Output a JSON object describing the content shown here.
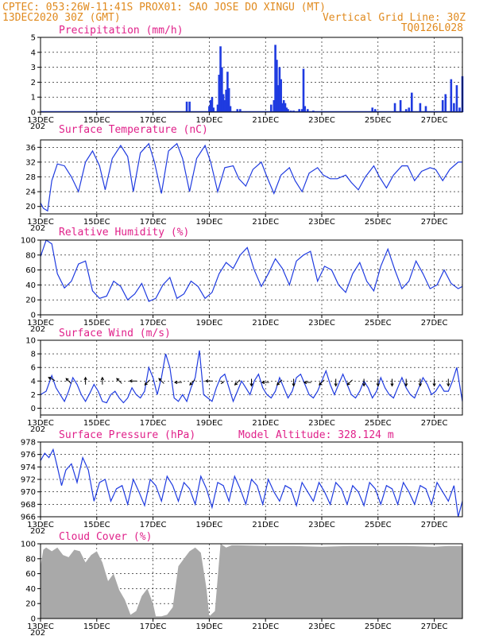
{
  "header": {
    "line1": "CPTEC:  053:26W-11:41S  PROX01: SAO JOSE DO XINGU (MT)",
    "line2_left": "13DEC2020 30Z (GMT)",
    "line2_right": "Vertical Grid Line: 30Z",
    "line3_right": "TQ0126L028"
  },
  "colors": {
    "header": "#e08a1e",
    "title": "#e0218a",
    "series": "#1f3be0",
    "cloud": "#a9a9a9"
  },
  "x_axis": {
    "start_day": 13,
    "end_day": 28,
    "tick_labels": [
      "13DEC",
      "15DEC",
      "17DEC",
      "19DEC",
      "21DEC",
      "23DEC",
      "25DEC",
      "27DEC"
    ],
    "tick_days": [
      13,
      15,
      17,
      19,
      21,
      23,
      25,
      27
    ],
    "cut_label": "202"
  },
  "chart_data": [
    {
      "id": "precip",
      "type": "bar",
      "title": "Precipitation (mm/h)",
      "ylim": [
        0,
        5
      ],
      "yticks": [
        0,
        1,
        2,
        3,
        4,
        5
      ],
      "x": [
        18.2,
        18.3,
        19.0,
        19.05,
        19.1,
        19.15,
        19.3,
        19.35,
        19.4,
        19.45,
        19.5,
        19.55,
        19.6,
        19.65,
        19.7,
        19.75,
        20.0,
        20.1,
        21.2,
        21.3,
        21.35,
        21.4,
        21.45,
        21.5,
        21.55,
        21.6,
        21.65,
        21.7,
        21.75,
        21.8,
        21.9,
        22.0,
        22.2,
        22.3,
        22.35,
        22.4,
        22.5,
        22.7,
        24.8,
        24.9,
        25.6,
        25.8,
        26.0,
        26.1,
        26.2,
        26.5,
        26.7,
        27.3,
        27.4,
        27.6,
        27.7,
        27.8,
        27.9,
        28.0
      ],
      "values": [
        0.7,
        0.7,
        0.4,
        0.8,
        1.0,
        0.3,
        0.5,
        2.5,
        4.4,
        3.0,
        1.2,
        0.8,
        1.5,
        2.7,
        1.6,
        0.4,
        0.2,
        0.2,
        0.5,
        0.8,
        4.5,
        3.5,
        1.8,
        3.0,
        2.2,
        0.6,
        0.8,
        0.6,
        0.3,
        0.2,
        0.1,
        0.1,
        0.2,
        0.2,
        2.9,
        0.4,
        0.2,
        0.1,
        0.3,
        0.2,
        0.6,
        0.8,
        0.2,
        0.3,
        1.3,
        0.6,
        0.4,
        0.8,
        1.2,
        2.2,
        0.6,
        1.8,
        0.3,
        2.4
      ]
    },
    {
      "id": "temp",
      "type": "line",
      "title": "Surface Temperature (nC)",
      "ylim": [
        18,
        38
      ],
      "yticks": [
        20,
        24,
        28,
        32,
        36
      ],
      "x": [
        13.0,
        13.1,
        13.25,
        13.4,
        13.6,
        13.85,
        14.1,
        14.35,
        14.6,
        14.85,
        15.1,
        15.3,
        15.55,
        15.85,
        16.1,
        16.3,
        16.55,
        16.85,
        17.05,
        17.3,
        17.55,
        17.85,
        18.05,
        18.3,
        18.55,
        18.85,
        19.05,
        19.3,
        19.55,
        19.85,
        20.05,
        20.3,
        20.55,
        20.85,
        21.05,
        21.3,
        21.55,
        21.85,
        22.05,
        22.3,
        22.55,
        22.85,
        23.05,
        23.3,
        23.55,
        23.85,
        24.05,
        24.3,
        24.55,
        24.85,
        25.05,
        25.3,
        25.55,
        25.85,
        26.05,
        26.3,
        26.55,
        26.85,
        27.05,
        27.3,
        27.55,
        27.85,
        28.0
      ],
      "values": [
        21.0,
        19.5,
        18.8,
        27.0,
        31.5,
        31.0,
        28.0,
        24.0,
        32.0,
        35.0,
        31.0,
        24.5,
        33.0,
        36.5,
        33.5,
        24.0,
        34.5,
        37.0,
        32.0,
        23.5,
        35.0,
        37.0,
        33.0,
        24.0,
        33.0,
        36.5,
        32.0,
        24.0,
        30.5,
        31.0,
        27.5,
        25.5,
        30.0,
        32.0,
        28.0,
        23.5,
        28.5,
        30.5,
        27.0,
        24.0,
        29.0,
        30.5,
        28.5,
        27.5,
        27.5,
        28.5,
        26.5,
        24.5,
        28.0,
        31.0,
        28.0,
        25.0,
        28.5,
        31.0,
        31.0,
        27.0,
        29.5,
        30.5,
        30.0,
        27.0,
        30.0,
        32.0,
        32.0
      ]
    },
    {
      "id": "rh",
      "type": "line",
      "title": "Relative Humidity (%)",
      "ylim": [
        0,
        100
      ],
      "yticks": [
        0,
        20,
        40,
        60,
        80,
        100
      ],
      "x": [
        13.0,
        13.2,
        13.4,
        13.6,
        13.85,
        14.1,
        14.35,
        14.6,
        14.85,
        15.1,
        15.35,
        15.6,
        15.85,
        16.1,
        16.35,
        16.6,
        16.85,
        17.1,
        17.35,
        17.6,
        17.85,
        18.1,
        18.35,
        18.6,
        18.85,
        19.1,
        19.35,
        19.6,
        19.85,
        20.1,
        20.35,
        20.6,
        20.85,
        21.1,
        21.35,
        21.6,
        21.85,
        22.1,
        22.35,
        22.6,
        22.85,
        23.1,
        23.35,
        23.6,
        23.85,
        24.1,
        24.35,
        24.6,
        24.85,
        25.1,
        25.35,
        25.6,
        25.85,
        26.1,
        26.35,
        26.6,
        26.85,
        27.1,
        27.35,
        27.6,
        27.85,
        28.0
      ],
      "values": [
        78,
        100,
        95,
        55,
        36,
        45,
        68,
        72,
        32,
        22,
        25,
        45,
        38,
        20,
        28,
        42,
        18,
        22,
        40,
        50,
        22,
        28,
        45,
        38,
        22,
        30,
        55,
        70,
        62,
        80,
        90,
        60,
        38,
        55,
        75,
        62,
        40,
        72,
        80,
        85,
        45,
        65,
        60,
        40,
        30,
        55,
        70,
        45,
        32,
        65,
        88,
        60,
        35,
        45,
        72,
        55,
        35,
        40,
        60,
        42,
        35,
        38
      ]
    },
    {
      "id": "wind",
      "type": "line",
      "title": "Surface Wind (m/s)",
      "ylim": [
        -1,
        10
      ],
      "yticks": [
        0,
        2,
        4,
        6,
        8,
        10
      ],
      "x": [
        13.0,
        13.2,
        13.4,
        13.55,
        13.7,
        13.85,
        14.0,
        14.15,
        14.3,
        14.45,
        14.6,
        14.75,
        14.9,
        15.05,
        15.2,
        15.35,
        15.5,
        15.65,
        15.8,
        15.95,
        16.1,
        16.25,
        16.4,
        16.55,
        16.7,
        16.85,
        17.0,
        17.15,
        17.3,
        17.45,
        17.6,
        17.75,
        17.9,
        18.05,
        18.2,
        18.35,
        18.5,
        18.65,
        18.8,
        18.95,
        19.1,
        19.25,
        19.4,
        19.55,
        19.7,
        19.85,
        20.0,
        20.15,
        20.3,
        20.45,
        20.6,
        20.75,
        20.9,
        21.05,
        21.2,
        21.35,
        21.5,
        21.65,
        21.8,
        21.95,
        22.1,
        22.25,
        22.4,
        22.55,
        22.7,
        22.85,
        23.0,
        23.15,
        23.3,
        23.45,
        23.6,
        23.75,
        23.9,
        24.05,
        24.2,
        24.35,
        24.5,
        24.65,
        24.8,
        24.95,
        25.1,
        25.25,
        25.4,
        25.55,
        25.7,
        25.85,
        26.0,
        26.15,
        26.3,
        26.45,
        26.6,
        26.75,
        26.9,
        27.05,
        27.2,
        27.35,
        27.5,
        27.65,
        27.8,
        28.0
      ],
      "values": [
        2.0,
        2.5,
        4.8,
        3.0,
        2.0,
        1.0,
        2.5,
        4.5,
        3.5,
        2.0,
        1.0,
        2.2,
        3.5,
        2.5,
        1.0,
        0.8,
        2.0,
        2.5,
        1.5,
        0.8,
        1.5,
        3.0,
        2.0,
        1.5,
        2.5,
        6.0,
        4.5,
        2.0,
        4.5,
        8.0,
        6.0,
        1.5,
        1.0,
        2.0,
        1.0,
        3.0,
        4.5,
        8.5,
        2.0,
        1.5,
        1.0,
        3.0,
        4.5,
        5.0,
        3.0,
        1.0,
        2.5,
        4.0,
        3.0,
        2.0,
        4.0,
        5.0,
        3.0,
        2.0,
        1.5,
        2.5,
        4.5,
        3.0,
        1.5,
        2.5,
        4.5,
        5.0,
        3.5,
        2.0,
        1.5,
        2.5,
        4.0,
        5.5,
        3.5,
        2.0,
        3.5,
        5.0,
        3.5,
        2.0,
        1.5,
        2.5,
        4.0,
        3.0,
        1.5,
        2.5,
        4.5,
        3.0,
        2.0,
        1.5,
        3.0,
        4.5,
        3.0,
        2.0,
        1.5,
        3.0,
        4.5,
        3.5,
        2.0,
        2.5,
        3.5,
        2.5,
        2.5,
        4.0,
        6.0,
        1.0
      ],
      "arrows": [
        {
          "x": 13.4,
          "y": 4.3,
          "u": -2,
          "v": 1
        },
        {
          "x": 14.0,
          "y": 4.0,
          "u": -1,
          "v": 1
        },
        {
          "x": 14.6,
          "y": 4.0,
          "u": 0,
          "v": 1
        },
        {
          "x": 15.2,
          "y": 4.0,
          "u": 0,
          "v": 1
        },
        {
          "x": 15.8,
          "y": 4.0,
          "u": -1,
          "v": 1
        },
        {
          "x": 16.3,
          "y": 4.0,
          "u": -1,
          "v": 0
        },
        {
          "x": 16.8,
          "y": 3.8,
          "u": -1,
          "v": -1
        },
        {
          "x": 17.3,
          "y": 4.0,
          "u": -1,
          "v": 1
        },
        {
          "x": 17.9,
          "y": 3.8,
          "u": -1,
          "v": 0
        },
        {
          "x": 18.4,
          "y": 3.8,
          "u": -1,
          "v": -1
        },
        {
          "x": 19.0,
          "y": 4.0,
          "u": -1,
          "v": 0
        },
        {
          "x": 19.5,
          "y": 3.8,
          "u": 0,
          "v": 0
        },
        {
          "x": 20.0,
          "y": 3.8,
          "u": -1,
          "v": -1
        },
        {
          "x": 20.5,
          "y": 3.8,
          "u": 0,
          "v": -1
        },
        {
          "x": 21.0,
          "y": 3.8,
          "u": -1,
          "v": 0
        },
        {
          "x": 21.5,
          "y": 3.8,
          "u": -1,
          "v": -1
        },
        {
          "x": 22.0,
          "y": 3.8,
          "u": 0,
          "v": -1
        },
        {
          "x": 22.5,
          "y": 3.8,
          "u": -1,
          "v": 0
        },
        {
          "x": 23.0,
          "y": 3.8,
          "u": -1,
          "v": -1
        },
        {
          "x": 23.5,
          "y": 3.8,
          "u": 0,
          "v": -1
        },
        {
          "x": 24.0,
          "y": 3.8,
          "u": -1,
          "v": -1
        },
        {
          "x": 24.5,
          "y": 3.8,
          "u": 0,
          "v": -1
        },
        {
          "x": 25.0,
          "y": 3.8,
          "u": 0,
          "v": -1
        },
        {
          "x": 25.5,
          "y": 3.8,
          "u": 0,
          "v": -1
        },
        {
          "x": 26.0,
          "y": 3.8,
          "u": 0,
          "v": -1
        },
        {
          "x": 26.5,
          "y": 3.8,
          "u": 0,
          "v": -1
        },
        {
          "x": 27.0,
          "y": 3.8,
          "u": 0,
          "v": -1
        },
        {
          "x": 27.5,
          "y": 3.8,
          "u": 0,
          "v": -1
        }
      ]
    },
    {
      "id": "press",
      "type": "line",
      "title": "Surface Pressure (hPa)",
      "extra_label": "Model Altitude: 328.124 m",
      "ylim": [
        966,
        978
      ],
      "yticks": [
        966,
        968,
        970,
        972,
        974,
        976,
        978
      ],
      "x": [
        13.0,
        13.15,
        13.3,
        13.45,
        13.6,
        13.75,
        13.9,
        14.1,
        14.3,
        14.5,
        14.7,
        14.9,
        15.1,
        15.3,
        15.5,
        15.7,
        15.9,
        16.1,
        16.3,
        16.5,
        16.7,
        16.9,
        17.1,
        17.3,
        17.5,
        17.7,
        17.9,
        18.1,
        18.3,
        18.5,
        18.7,
        18.9,
        19.1,
        19.3,
        19.5,
        19.7,
        19.9,
        20.1,
        20.3,
        20.5,
        20.7,
        20.9,
        21.1,
        21.3,
        21.5,
        21.7,
        21.9,
        22.1,
        22.3,
        22.5,
        22.7,
        22.9,
        23.1,
        23.3,
        23.5,
        23.7,
        23.9,
        24.1,
        24.3,
        24.5,
        24.7,
        24.9,
        25.1,
        25.3,
        25.5,
        25.7,
        25.9,
        26.1,
        26.3,
        26.5,
        26.7,
        26.9,
        27.1,
        27.3,
        27.5,
        27.7,
        27.85,
        28.0
      ],
      "values": [
        975.0,
        976.2,
        975.5,
        976.8,
        974.0,
        971.0,
        973.5,
        974.5,
        971.5,
        975.5,
        973.5,
        968.5,
        971.5,
        972.0,
        968.5,
        970.5,
        971.0,
        968.0,
        972.0,
        970.0,
        967.8,
        972.0,
        971.0,
        968.5,
        972.5,
        971.0,
        968.5,
        971.5,
        970.5,
        968.0,
        972.5,
        970.5,
        967.5,
        971.5,
        971.0,
        968.5,
        972.5,
        970.5,
        968.0,
        972.0,
        971.0,
        968.0,
        972.0,
        970.0,
        968.5,
        971.0,
        970.5,
        967.8,
        971.5,
        970.0,
        968.5,
        971.5,
        970.0,
        968.0,
        971.5,
        970.5,
        968.0,
        971.0,
        970.0,
        967.8,
        971.5,
        970.5,
        968.0,
        971.0,
        970.5,
        968.0,
        971.5,
        970.0,
        968.0,
        971.0,
        970.5,
        968.0,
        971.5,
        970.0,
        968.5,
        971.0,
        966.0,
        968.5
      ]
    },
    {
      "id": "cloud",
      "type": "area",
      "title": "Cloud Cover (%)",
      "ylim": [
        0,
        100
      ],
      "yticks": [
        0,
        20,
        40,
        60,
        80,
        100
      ],
      "x": [
        13.0,
        13.1,
        13.2,
        13.4,
        13.6,
        13.8,
        14.0,
        14.2,
        14.4,
        14.6,
        14.8,
        15.0,
        15.2,
        15.4,
        15.6,
        15.8,
        16.0,
        16.2,
        16.4,
        16.6,
        16.8,
        17.0,
        17.1,
        17.3,
        17.5,
        17.7,
        17.9,
        18.1,
        18.3,
        18.5,
        18.7,
        18.9,
        19.0,
        19.2,
        19.4,
        19.6,
        19.8,
        20.0,
        21.0,
        22.0,
        23.0,
        24.0,
        25.0,
        26.0,
        27.0,
        27.5,
        28.0
      ],
      "values": [
        70,
        92,
        95,
        90,
        95,
        85,
        82,
        92,
        90,
        75,
        85,
        90,
        75,
        50,
        60,
        38,
        25,
        5,
        10,
        30,
        40,
        20,
        3,
        3,
        5,
        15,
        70,
        80,
        90,
        95,
        88,
        40,
        3,
        10,
        100,
        95,
        98,
        98,
        97,
        97,
        96,
        97,
        97,
        97,
        96,
        97,
        97
      ]
    }
  ]
}
